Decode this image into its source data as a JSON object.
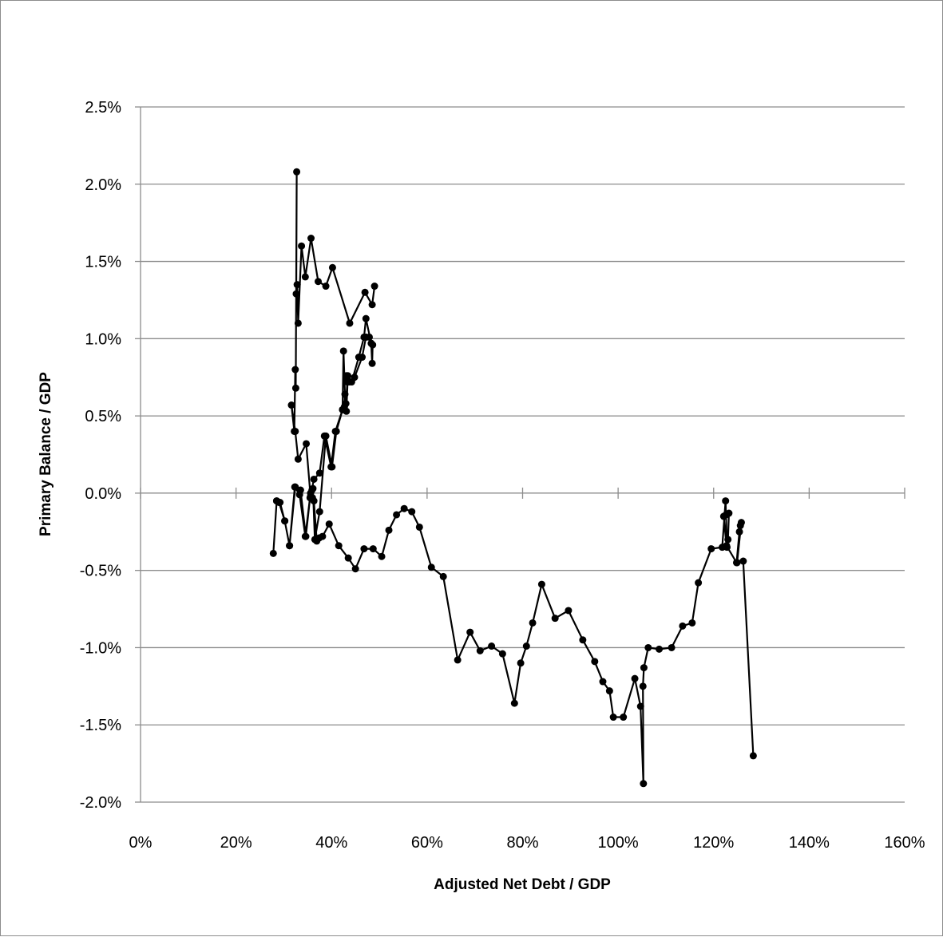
{
  "chart_data": {
    "type": "scatter",
    "mode": "lines+markers",
    "xlabel": "Adjusted Net Debt / GDP",
    "ylabel": "Primary Balance / GDP",
    "xlim": [
      0,
      160
    ],
    "ylim": [
      -2.0,
      2.5
    ],
    "x_ticks": [
      0,
      20,
      40,
      60,
      80,
      100,
      120,
      140,
      160
    ],
    "x_tick_labels": [
      "0%",
      "20%",
      "40%",
      "60%",
      "80%",
      "100%",
      "120%",
      "140%",
      "160%"
    ],
    "y_ticks": [
      2.5,
      2.0,
      1.5,
      1.0,
      0.5,
      0.0,
      -0.5,
      -1.0,
      -1.5,
      -2.0
    ],
    "y_tick_labels": [
      "2.5%",
      "2.0%",
      "1.5%",
      "1.0%",
      "0.5%",
      "0.0%",
      "-0.5%",
      "-1.0%",
      "-1.5%",
      "-2.0%"
    ],
    "grid": "horizontal",
    "legend": "none",
    "series": [
      {
        "color": "#000000",
        "x": [
          49.0,
          48.5,
          47.0,
          43.8,
          40.2,
          38.8,
          37.2,
          35.7,
          34.5,
          33.7,
          33.0,
          32.8,
          32.6,
          32.7,
          32.5,
          32.4,
          32.2,
          31.6,
          32.4,
          33.0,
          34.7,
          35.6,
          36.3,
          37.5,
          38.5,
          39.9,
          40.8,
          42.3,
          42.5,
          42.8,
          42.7,
          43.1,
          43.4,
          44.2,
          45.7,
          46.8,
          47.2,
          48.3,
          48.5,
          48.6,
          47.9,
          47.2,
          46.4,
          44.8,
          43.7,
          43.1,
          43.3,
          43.0,
          42.6,
          42.3,
          41.0,
          40.1,
          38.8,
          37.5,
          36.5,
          36.1,
          36.0,
          35.6,
          34.5,
          33.3,
          32.3,
          31.2,
          30.2,
          29.0,
          28.5,
          27.8,
          28.5,
          29.2,
          30.2,
          31.2,
          32.4,
          33.5,
          34.6,
          35.5,
          35.9,
          36.3,
          36.9,
          37.4,
          38.1,
          39.5,
          41.5,
          43.5,
          45.0,
          46.8,
          48.7,
          50.5,
          52.0,
          53.6,
          55.2,
          56.8,
          58.4,
          60.9,
          63.4,
          66.4,
          69.0,
          71.1,
          73.5,
          75.8,
          78.3,
          79.6,
          80.8,
          82.1,
          84.0,
          86.8,
          89.6,
          92.6,
          95.1,
          96.8,
          98.2,
          99.0,
          101.1,
          103.5,
          104.7,
          105.3,
          105.2,
          105.4,
          106.3,
          108.6,
          111.2,
          113.5,
          115.5,
          116.8,
          119.5,
          121.8,
          122.5,
          122.8,
          123.0,
          123.2,
          122.6,
          122.1,
          122.7,
          124.8,
          125.4,
          125.6,
          125.8,
          124.9,
          126.2,
          128.3
        ],
        "y": [
          1.34,
          1.22,
          1.3,
          1.1,
          1.46,
          1.34,
          1.37,
          1.65,
          1.4,
          1.6,
          1.1,
          1.35,
          1.29,
          2.08,
          0.68,
          0.8,
          0.4,
          0.57,
          0.4,
          0.22,
          0.32,
          -0.02,
          0.09,
          0.13,
          0.37,
          0.17,
          0.4,
          0.54,
          0.92,
          0.64,
          0.56,
          0.53,
          0.76,
          0.72,
          0.88,
          1.01,
          1.13,
          0.97,
          0.84,
          0.96,
          1.01,
          1.01,
          0.88,
          0.75,
          0.72,
          0.76,
          0.72,
          0.58,
          0.55,
          0.54,
          0.4,
          0.17,
          0.37,
          -0.12,
          -0.3,
          0.03,
          -0.03,
          -0.0,
          -0.28,
          -0.01,
          0.04,
          -0.34,
          -0.18,
          -0.06,
          -0.05,
          -0.39,
          -0.05,
          -0.06,
          -0.18,
          -0.34,
          0.04,
          0.02,
          -0.28,
          -0.03,
          0.02,
          -0.05,
          -0.31,
          -0.29,
          -0.28,
          -0.2,
          -0.34,
          -0.42,
          -0.49,
          -0.36,
          -0.36,
          -0.41,
          -0.24,
          -0.14,
          -0.1,
          -0.12,
          -0.22,
          -0.48,
          -0.54,
          -1.08,
          -0.9,
          -1.02,
          -0.99,
          -1.04,
          -1.36,
          -1.1,
          -0.99,
          -0.84,
          -0.59,
          -0.81,
          -0.76,
          -0.95,
          -1.09,
          -1.22,
          -1.28,
          -1.45,
          -1.45,
          -1.2,
          -1.38,
          -1.88,
          -1.25,
          -1.13,
          -1.0,
          -1.01,
          -1.0,
          -0.86,
          -0.84,
          -0.58,
          -0.36,
          -0.35,
          -0.05,
          -0.35,
          -0.3,
          -0.13,
          -0.14,
          -0.15,
          -0.34,
          -0.45,
          -0.25,
          -0.21,
          -0.19,
          -0.45,
          -0.44,
          -1.7
        ]
      }
    ]
  }
}
